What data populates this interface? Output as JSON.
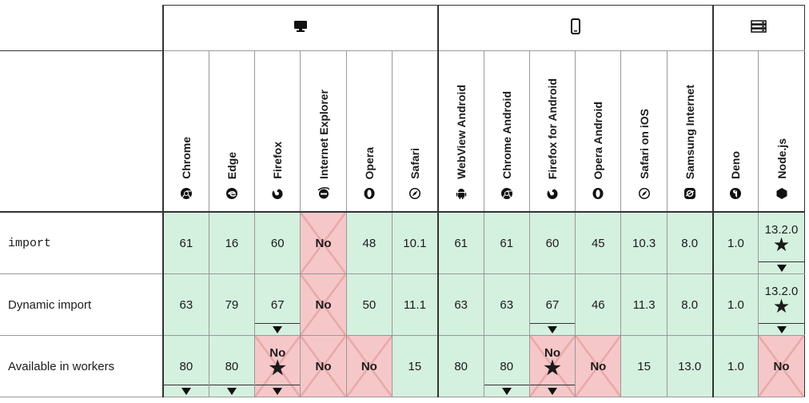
{
  "groups": [
    {
      "name": "desktop",
      "icon": "desktop-icon"
    },
    {
      "name": "mobile",
      "icon": "mobile-icon"
    },
    {
      "name": "server",
      "icon": "server-icon"
    }
  ],
  "browsers": [
    {
      "label": "Chrome",
      "icon": "chrome-icon"
    },
    {
      "label": "Edge",
      "icon": "edge-icon"
    },
    {
      "label": "Firefox",
      "icon": "firefox-icon"
    },
    {
      "label": "Internet Explorer",
      "icon": "internet-explorer-icon"
    },
    {
      "label": "Opera",
      "icon": "opera-icon"
    },
    {
      "label": "Safari",
      "icon": "safari-icon"
    },
    {
      "label": "WebView Android",
      "icon": "android-icon"
    },
    {
      "label": "Chrome Android",
      "icon": "chrome-icon"
    },
    {
      "label": "Firefox for Android",
      "icon": "firefox-icon"
    },
    {
      "label": "Opera Android",
      "icon": "opera-icon"
    },
    {
      "label": "Safari on iOS",
      "icon": "safari-icon"
    },
    {
      "label": "Samsung Internet",
      "icon": "samsung-internet-icon"
    },
    {
      "label": "Deno",
      "icon": "deno-icon"
    },
    {
      "label": "Node.js",
      "icon": "nodejs-icon"
    }
  ],
  "rows": [
    {
      "feature": "import",
      "cells": [
        {
          "text": "61",
          "support": "yes"
        },
        {
          "text": "16",
          "support": "yes"
        },
        {
          "text": "60",
          "support": "yes"
        },
        {
          "text": "No",
          "support": "no"
        },
        {
          "text": "48",
          "support": "yes"
        },
        {
          "text": "10.1",
          "support": "yes"
        },
        {
          "text": "61",
          "support": "yes"
        },
        {
          "text": "61",
          "support": "yes"
        },
        {
          "text": "60",
          "support": "yes"
        },
        {
          "text": "45",
          "support": "yes"
        },
        {
          "text": "10.3",
          "support": "yes"
        },
        {
          "text": "8.0",
          "support": "yes"
        },
        {
          "text": "1.0",
          "support": "yes"
        },
        {
          "text": "13.2.0",
          "support": "yes"
        }
      ]
    },
    {
      "feature": "Dynamic import",
      "cells": [
        {
          "text": "63",
          "support": "yes"
        },
        {
          "text": "79",
          "support": "yes"
        },
        {
          "text": "67",
          "support": "yes"
        },
        {
          "text": "No",
          "support": "no"
        },
        {
          "text": "50",
          "support": "yes"
        },
        {
          "text": "11.1",
          "support": "yes"
        },
        {
          "text": "63",
          "support": "yes"
        },
        {
          "text": "63",
          "support": "yes"
        },
        {
          "text": "67",
          "support": "yes"
        },
        {
          "text": "46",
          "support": "yes"
        },
        {
          "text": "11.3",
          "support": "yes"
        },
        {
          "text": "8.0",
          "support": "yes"
        },
        {
          "text": "1.0",
          "support": "yes"
        },
        {
          "text": "13.2.0",
          "support": "yes"
        }
      ]
    },
    {
      "feature": "Available in workers",
      "cells": [
        {
          "text": "80",
          "support": "yes"
        },
        {
          "text": "80",
          "support": "yes"
        },
        {
          "text": "No",
          "support": "no"
        },
        {
          "text": "No",
          "support": "no"
        },
        {
          "text": "No",
          "support": "no"
        },
        {
          "text": "15",
          "support": "yes"
        },
        {
          "text": "80",
          "support": "yes"
        },
        {
          "text": "80",
          "support": "yes"
        },
        {
          "text": "No",
          "support": "no"
        },
        {
          "text": "No",
          "support": "no"
        },
        {
          "text": "15",
          "support": "yes"
        },
        {
          "text": "13.0",
          "support": "yes"
        },
        {
          "text": "1.0",
          "support": "yes"
        },
        {
          "text": "No",
          "support": "no"
        }
      ]
    }
  ],
  "colors": {
    "supported": "#d4f0df",
    "unsupported": "#f6c7c8",
    "cross": "#e8a9aa"
  }
}
